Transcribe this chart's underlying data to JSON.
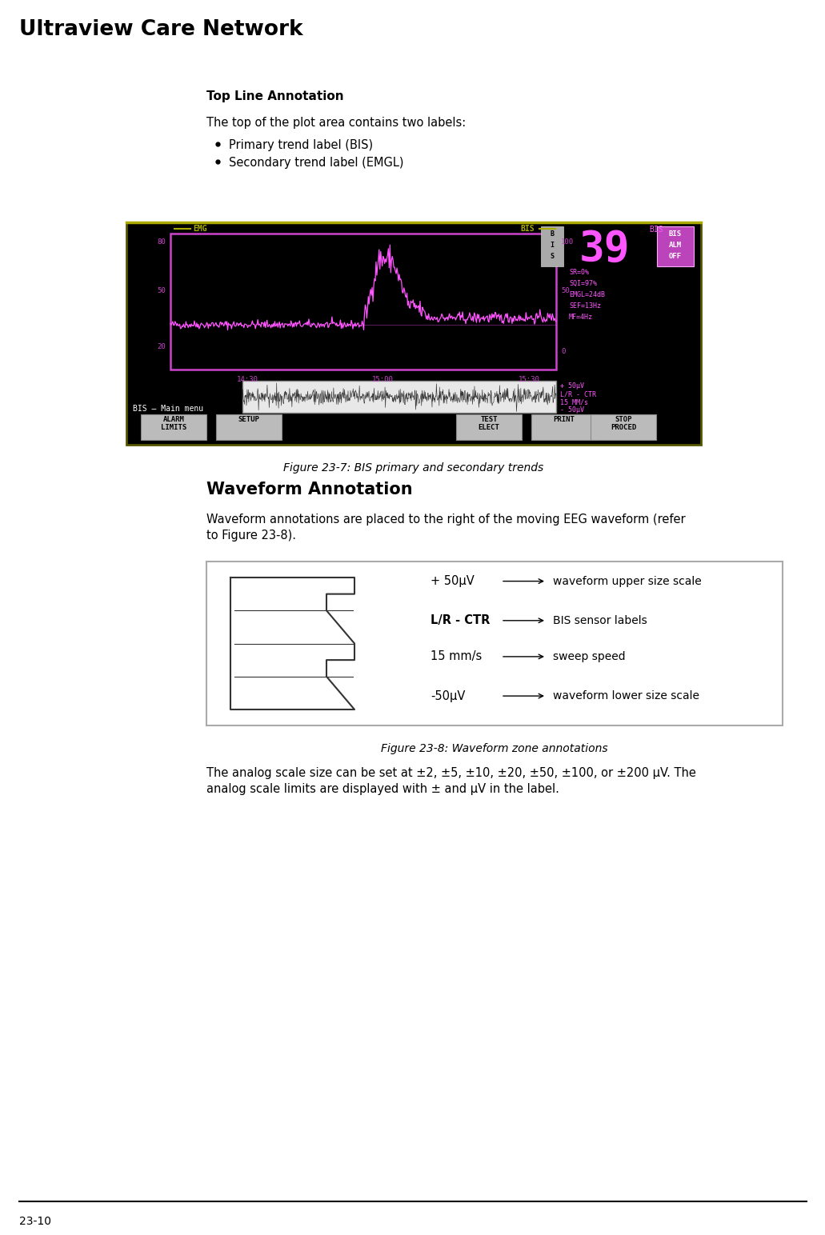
{
  "title": "Ultraview Care Network",
  "page_num": "23-10",
  "section1_heading": "Top Line Annotation",
  "section1_para": "The top of the plot area contains two labels:",
  "section1_bullets": [
    "Primary trend label (BIS)",
    "Secondary trend label (EMGL)"
  ],
  "fig1_caption": "Figure 23-7: BIS primary and secondary trends",
  "section2_heading": "Waveform Annotation",
  "section2_para_line1": "Waveform annotations are placed to the right of the moving EEG waveform (refer",
  "section2_para_line2": "to Figure 23-8).",
  "fig2_caption": "Figure 23-8: Waveform zone annotations",
  "section3_para_line1": "The analog scale size can be set at ±2, ±5, ±10, ±20, ±50, ±100, or ±200 μV. The",
  "section3_para_line2": "analog scale limits are displayed with ± and μV in the label.",
  "waveform_labels": [
    "+ 50μV",
    "L/R - CTR",
    "15 mm/s",
    "-50μV"
  ],
  "waveform_annotations": [
    "waveform upper size scale",
    "BIS sensor labels",
    "sweep speed",
    "waveform lower size scale"
  ],
  "bg_color": "#ffffff",
  "text_color": "#000000",
  "screen_bg": "#000000",
  "screen_plot_border": "#cc44cc",
  "screen_yellow": "#aaaa00",
  "screen_pink": "#ff55ff",
  "screen_stats_color": "#ff55ff",
  "screen_white": "#ffffff",
  "waveform_box_border": "#888888"
}
